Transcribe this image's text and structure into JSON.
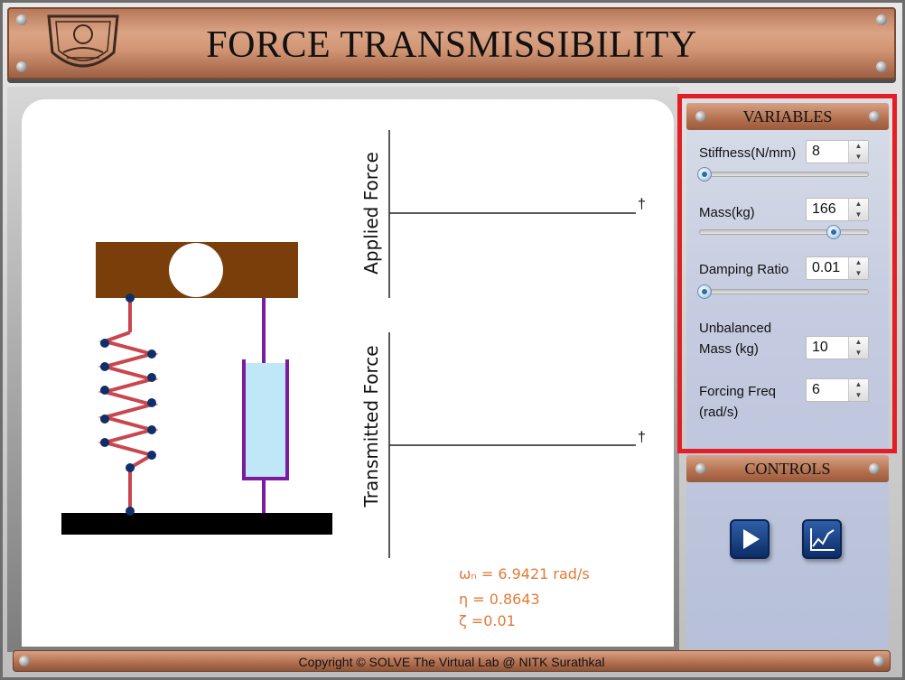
{
  "header": {
    "title": "FORCE TRANSMISSIBILITY",
    "logo": "institute-seal"
  },
  "simulation": {
    "graph_top_label": "Applied Force",
    "graph_bottom_label": "Transmitted Force",
    "axis_marker": "†",
    "readouts": {
      "omega_n": "ωₙ = 6.9421 rad/s",
      "eta": "η = 0.8643",
      "zeta": "ζ =0.01"
    }
  },
  "variables": {
    "title": "VARIABLES",
    "stiffness": {
      "label": "Stiffness(N/mm)",
      "value": "8",
      "slider_fraction": 0.0
    },
    "mass": {
      "label": "Mass(kg)",
      "value": "166",
      "slider_fraction": 0.83
    },
    "damping": {
      "label": "Damping Ratio",
      "value": "0.01",
      "slider_fraction": 0.0
    },
    "unbalanced_mass": {
      "label_line1": "Unbalanced",
      "label_line2": "Mass (kg)",
      "value": "10"
    },
    "forcing_freq": {
      "label_line1": "Forcing Freq",
      "label_line2": "(rad/s)",
      "value": "6"
    }
  },
  "controls": {
    "title": "CONTROLS",
    "play_icon": "play-icon",
    "graph_icon": "graph-icon"
  },
  "footer": {
    "copyright": "Copyright © SOLVE The Virtual Lab @ NITK Surathkal"
  },
  "colors": {
    "accent_red": "#e41e25",
    "readout_orange": "#e07b39",
    "spring_red": "#c8474e",
    "damper_purple": "#7a1c9c",
    "mass_brown": "#7a3e0a"
  }
}
